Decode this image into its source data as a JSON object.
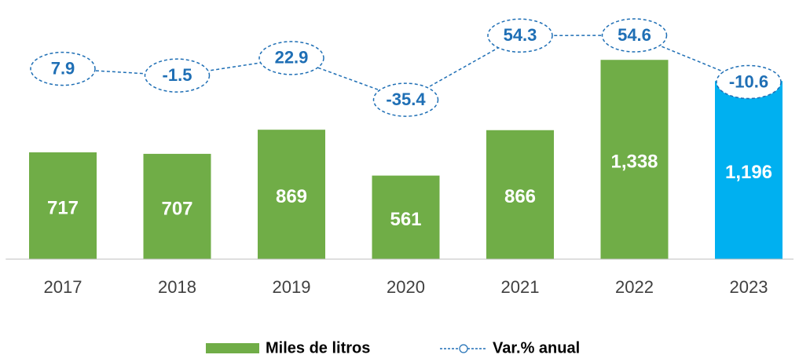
{
  "chart_data": {
    "type": "bar",
    "categories": [
      "2017",
      "2018",
      "2019",
      "2020",
      "2021",
      "2022",
      "2023"
    ],
    "series": [
      {
        "name": "Miles de litros",
        "type": "bar",
        "colors": [
          "#70ad47",
          "#70ad47",
          "#70ad47",
          "#70ad47",
          "#70ad47",
          "#70ad47",
          "#00b0f0"
        ],
        "values": [
          717,
          707,
          869,
          561,
          866,
          1338,
          1196
        ],
        "value_labels": [
          "717",
          "707",
          "869",
          "561",
          "866",
          "1,338",
          "1,196"
        ]
      },
      {
        "name": "Var.% anual",
        "type": "line",
        "axis": "y2",
        "color": "#1f6fb5",
        "values": [
          7.9,
          -1.5,
          22.9,
          -35.4,
          54.3,
          54.6,
          -10.6
        ]
      }
    ],
    "ylim": [
      0,
      1740
    ],
    "y2lim": [
      -258,
      104
    ],
    "legend": "bottom"
  }
}
